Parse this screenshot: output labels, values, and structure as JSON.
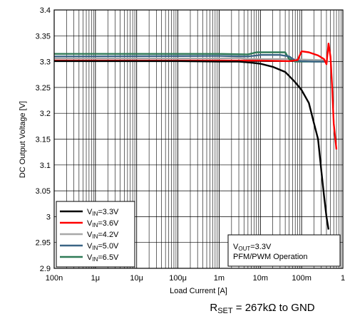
{
  "chart_data": {
    "type": "line",
    "xscale": "log",
    "xlim": [
      1e-07,
      1
    ],
    "ylim": [
      2.9,
      3.4
    ],
    "xlabel": "Load Current [A]",
    "ylabel": "DC Output Voltage [V]",
    "xticks": [
      {
        "v": 1e-07,
        "label": "100n"
      },
      {
        "v": 1e-06,
        "label": "1μ"
      },
      {
        "v": 1e-05,
        "label": "10μ"
      },
      {
        "v": 0.0001,
        "label": "100μ"
      },
      {
        "v": 0.001,
        "label": "1m"
      },
      {
        "v": 0.01,
        "label": "10m"
      },
      {
        "v": 0.1,
        "label": "100m"
      },
      {
        "v": 1,
        "label": "1"
      }
    ],
    "yticks": [
      {
        "v": 2.9,
        "label": "2.9"
      },
      {
        "v": 2.95,
        "label": "2.95"
      },
      {
        "v": 3.0,
        "label": "3"
      },
      {
        "v": 3.05,
        "label": "3.05"
      },
      {
        "v": 3.1,
        "label": "3.1"
      },
      {
        "v": 3.15,
        "label": "3.15"
      },
      {
        "v": 3.2,
        "label": "3.2"
      },
      {
        "v": 3.25,
        "label": "3.25"
      },
      {
        "v": 3.3,
        "label": "3.3"
      },
      {
        "v": 3.35,
        "label": "3.35"
      },
      {
        "v": 3.4,
        "label": "3.4"
      }
    ],
    "grid": true,
    "series": [
      {
        "name": "VIN=3.3V",
        "sub": "IN",
        "suffix": "=3.3V",
        "color": "#000000",
        "points": [
          [
            1e-07,
            3.301
          ],
          [
            0.0001,
            3.301
          ],
          [
            0.001,
            3.3
          ],
          [
            0.003,
            3.3
          ],
          [
            0.006,
            3.298
          ],
          [
            0.01,
            3.296
          ],
          [
            0.02,
            3.29
          ],
          [
            0.04,
            3.28
          ],
          [
            0.07,
            3.26
          ],
          [
            0.1,
            3.245
          ],
          [
            0.15,
            3.22
          ],
          [
            0.2,
            3.18
          ],
          [
            0.25,
            3.15
          ],
          [
            0.3,
            3.09
          ],
          [
            0.35,
            3.04
          ],
          [
            0.4,
            3.0
          ],
          [
            0.45,
            2.975
          ]
        ]
      },
      {
        "name": "VIN=3.6V",
        "sub": "IN",
        "suffix": "=3.6V",
        "color": "#ff0000",
        "points": [
          [
            1e-07,
            3.302
          ],
          [
            0.001,
            3.302
          ],
          [
            0.01,
            3.302
          ],
          [
            0.05,
            3.301
          ],
          [
            0.08,
            3.303
          ],
          [
            0.1,
            3.32
          ],
          [
            0.15,
            3.318
          ],
          [
            0.25,
            3.312
          ],
          [
            0.35,
            3.305
          ],
          [
            0.4,
            3.295
          ],
          [
            0.45,
            3.335
          ],
          [
            0.5,
            3.31
          ],
          [
            0.55,
            3.25
          ],
          [
            0.6,
            3.18
          ],
          [
            0.7,
            3.13
          ]
        ]
      },
      {
        "name": "VIN=4.2V",
        "sub": "IN",
        "suffix": "=4.2V",
        "color": "#a8a8a8",
        "points": [
          [
            1e-07,
            3.306
          ],
          [
            0.001,
            3.306
          ],
          [
            0.003,
            3.307
          ],
          [
            0.005,
            3.305
          ],
          [
            0.01,
            3.305
          ],
          [
            0.05,
            3.305
          ],
          [
            0.1,
            3.304
          ],
          [
            0.3,
            3.303
          ],
          [
            0.45,
            3.3
          ]
        ]
      },
      {
        "name": "VIN=5.0V",
        "sub": "IN",
        "suffix": "=5.0V",
        "color": "#3a6585",
        "points": [
          [
            1e-07,
            3.31
          ],
          [
            0.001,
            3.311
          ],
          [
            0.005,
            3.31
          ],
          [
            0.008,
            3.312
          ],
          [
            0.01,
            3.313
          ],
          [
            0.03,
            3.313
          ],
          [
            0.05,
            3.31
          ],
          [
            0.07,
            3.302
          ],
          [
            0.1,
            3.301
          ],
          [
            0.2,
            3.3
          ],
          [
            0.4,
            3.3
          ]
        ]
      },
      {
        "name": "VIN=6.5V",
        "sub": "IN",
        "suffix": "=6.5V",
        "color": "#2e7a56",
        "points": [
          [
            1e-07,
            3.315
          ],
          [
            0.001,
            3.315
          ],
          [
            0.005,
            3.314
          ],
          [
            0.008,
            3.318
          ],
          [
            0.015,
            3.318
          ],
          [
            0.04,
            3.318
          ],
          [
            0.05,
            3.305
          ],
          [
            0.07,
            3.3
          ],
          [
            0.1,
            3.3
          ],
          [
            0.2,
            3.3
          ],
          [
            0.4,
            3.3
          ]
        ]
      }
    ],
    "legend": {
      "placement": "bottom-left"
    },
    "annotation": {
      "line1_main": "V",
      "line1_sub": "OUT",
      "line1_rest": "=3.3V",
      "line2": "PFM/PWM Operation",
      "placement": "bottom-right"
    },
    "caption": {
      "main": "R",
      "sub": "SET",
      "rest": " = 267kΩ to GND"
    }
  }
}
